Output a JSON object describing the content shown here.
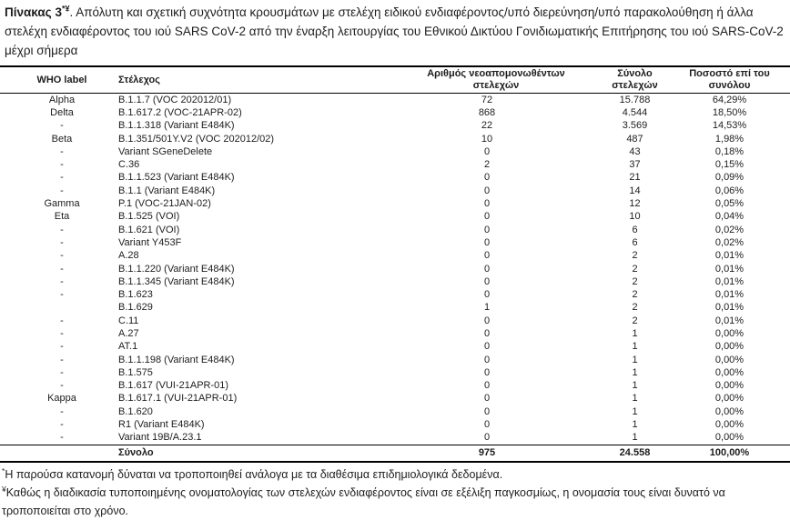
{
  "title": {
    "label": "Πίνακας 3",
    "superscript": "*¥",
    "text": ". Απόλυτη και σχετική συχνότητα κρουσμάτων με στελέχη ειδικού ενδιαφέροντος/υπό διερεύνηση/υπό παρακολούθηση ή άλλα στελέχη ενδιαφέροντος του ιού SARS CoV-2 από την έναρξη λειτουργίας του Εθνικού Δικτύου Γονιδιωματικής Επιτήρησης του ιού SARS-CoV-2 μέχρι σήμερα"
  },
  "table": {
    "columns": [
      "WHO label",
      "Στέλεχος",
      "Αριθμός νεοαπομονωθέντων στελεχών",
      "Σύνολο στελεχών",
      "Ποσοστό επί του συνόλου"
    ],
    "rows": [
      {
        "who": "Alpha",
        "strain": "B.1.1.7 (VOC 202012/01)",
        "new_isolates": "72",
        "total": "15.788",
        "percent": "64,29%"
      },
      {
        "who": "Delta",
        "strain": "B.1.617.2 (VOC-21APR-02)",
        "new_isolates": "868",
        "total": "4.544",
        "percent": "18,50%"
      },
      {
        "who": "-",
        "strain": "B.1.1.318 (Variant E484K)",
        "new_isolates": "22",
        "total": "3.569",
        "percent": "14,53%"
      },
      {
        "who": "Beta",
        "strain": "B.1.351/501Y.V2 (VOC 202012/02)",
        "new_isolates": "10",
        "total": "487",
        "percent": "1,98%"
      },
      {
        "who": "-",
        "strain": "Variant SGeneDelete",
        "new_isolates": "0",
        "total": "43",
        "percent": "0,18%"
      },
      {
        "who": "-",
        "strain": "C.36",
        "new_isolates": "2",
        "total": "37",
        "percent": "0,15%"
      },
      {
        "who": "-",
        "strain": "B.1.1.523 (Variant E484K)",
        "new_isolates": "0",
        "total": "21",
        "percent": "0,09%"
      },
      {
        "who": "-",
        "strain": "B.1.1 (Variant E484K)",
        "new_isolates": "0",
        "total": "14",
        "percent": "0,06%"
      },
      {
        "who": "Gamma",
        "strain": "P.1 (VOC-21JAN-02)",
        "new_isolates": "0",
        "total": "12",
        "percent": "0,05%"
      },
      {
        "who": "Eta",
        "strain": "B.1.525 (VOI)",
        "new_isolates": "0",
        "total": "10",
        "percent": "0,04%"
      },
      {
        "who": "-",
        "strain": "B.1.621 (VOI)",
        "new_isolates": "0",
        "total": "6",
        "percent": "0,02%"
      },
      {
        "who": "-",
        "strain": "Variant Y453F",
        "new_isolates": "0",
        "total": "6",
        "percent": "0,02%"
      },
      {
        "who": "-",
        "strain": "A.28",
        "new_isolates": "0",
        "total": "2",
        "percent": "0,01%"
      },
      {
        "who": "-",
        "strain": "B.1.1.220 (Variant E484K)",
        "new_isolates": "0",
        "total": "2",
        "percent": "0,01%"
      },
      {
        "who": "-",
        "strain": "B.1.1.345 (Variant E484K)",
        "new_isolates": "0",
        "total": "2",
        "percent": "0,01%"
      },
      {
        "who": "-",
        "strain": "B.1.623",
        "new_isolates": "0",
        "total": "2",
        "percent": "0,01%"
      },
      {
        "who": "",
        "strain": "B.1.629",
        "new_isolates": "1",
        "total": "2",
        "percent": "0,01%"
      },
      {
        "who": "-",
        "strain": "C.11",
        "new_isolates": "0",
        "total": "2",
        "percent": "0,01%"
      },
      {
        "who": "-",
        "strain": "A.27",
        "new_isolates": "0",
        "total": "1",
        "percent": "0,00%"
      },
      {
        "who": "-",
        "strain": "AT.1",
        "new_isolates": "0",
        "total": "1",
        "percent": "0,00%"
      },
      {
        "who": "-",
        "strain": "B.1.1.198 (Variant E484K)",
        "new_isolates": "0",
        "total": "1",
        "percent": "0,00%"
      },
      {
        "who": "-",
        "strain": "B.1.575",
        "new_isolates": "0",
        "total": "1",
        "percent": "0,00%"
      },
      {
        "who": "-",
        "strain": "B.1.617 (VUI-21APR-01)",
        "new_isolates": "0",
        "total": "1",
        "percent": "0,00%"
      },
      {
        "who": "Kappa",
        "strain": "B.1.617.1 (VUI-21APR-01)",
        "new_isolates": "0",
        "total": "1",
        "percent": "0,00%"
      },
      {
        "who": "-",
        "strain": "B.1.620",
        "new_isolates": "0",
        "total": "1",
        "percent": "0,00%"
      },
      {
        "who": "-",
        "strain": "R1 (Variant E484K)",
        "new_isolates": "0",
        "total": "1",
        "percent": "0,00%"
      },
      {
        "who": "-",
        "strain": "Variant 19B/A.23.1",
        "new_isolates": "0",
        "total": "1",
        "percent": "0,00%"
      }
    ],
    "total_row": {
      "who": "",
      "label": "Σύνολο",
      "new_isolates": "975",
      "total": "24.558",
      "percent": "100,00%"
    }
  },
  "footnotes": [
    {
      "marker": "*",
      "text": "Η παρούσα κατανομή δύναται να τροποποιηθεί ανάλογα με τα διαθέσιμα επιδημιολογικά δεδομένα."
    },
    {
      "marker": "¥",
      "text": "Καθώς η διαδικασία τυποποιημένης ονοματολογίας των στελεχών ενδιαφέροντος είναι σε εξέλιξη παγκοσμίως, η ονομασία τους είναι δυνατό να τροποποιείται στο χρόνο."
    }
  ]
}
